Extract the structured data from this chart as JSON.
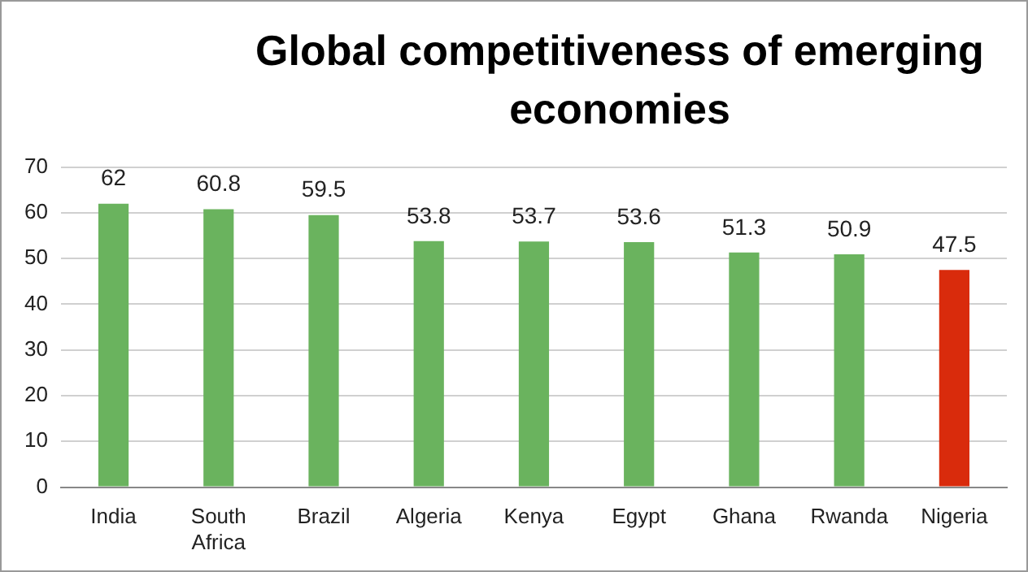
{
  "chart_data": {
    "type": "bar",
    "title": "Global competitiveness of emerging economies",
    "categories": [
      "India",
      "South Africa",
      "Brazil",
      "Algeria",
      "Kenya",
      "Egypt",
      "Ghana",
      "Rwanda",
      "Nigeria"
    ],
    "values": [
      62,
      60.8,
      59.5,
      53.8,
      53.7,
      53.6,
      51.3,
      50.9,
      47.5
    ],
    "colors": [
      "#6ab35e",
      "#6ab35e",
      "#6ab35e",
      "#6ab35e",
      "#6ab35e",
      "#6ab35e",
      "#6ab35e",
      "#6ab35e",
      "#d92b0c"
    ],
    "ylim": [
      0,
      70
    ],
    "yticks": [
      0,
      10,
      20,
      30,
      40,
      50,
      60,
      70
    ],
    "grid": "y",
    "data_labels": true,
    "legend": false
  }
}
